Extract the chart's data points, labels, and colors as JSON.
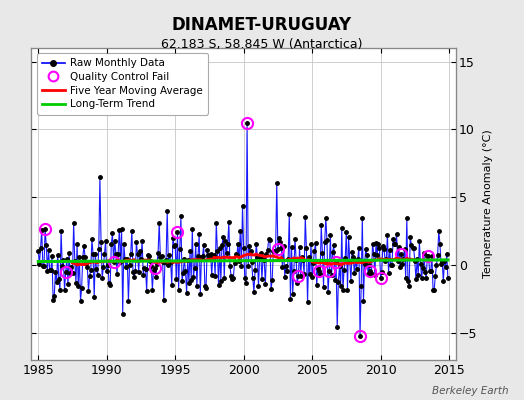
{
  "title": "DINAMET-URUGUAY",
  "subtitle": "62.183 S, 58.845 W (Antarctica)",
  "ylabel": "Temperature Anomaly (°C)",
  "xlim": [
    1984.5,
    2015.5
  ],
  "ylim": [
    -7,
    16
  ],
  "yticks": [
    -5,
    0,
    5,
    10,
    15
  ],
  "xticks": [
    1985,
    1990,
    1995,
    2000,
    2005,
    2010,
    2015
  ],
  "bg_color": "#e8e8e8",
  "plot_bg_color": "#ffffff",
  "grid_color": "#c8c8c8",
  "line_color": "#0000ff",
  "ma_color": "#ff0000",
  "trend_color": "#00cc00",
  "qc_color": "#ff00ff",
  "marker_color": "#000000",
  "watermark": "Berkeley Earth",
  "seed": 42,
  "n_years": 30,
  "start_year": 1985
}
